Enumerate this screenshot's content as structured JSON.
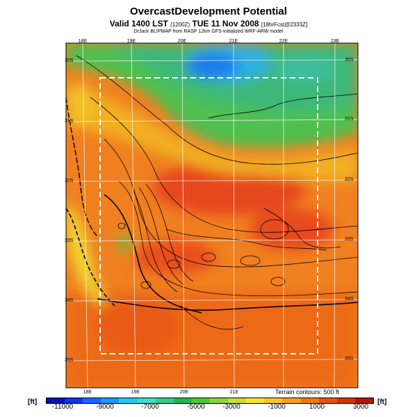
{
  "header": {
    "title": "OvercastDevelopment Potential",
    "valid_main": "Valid 1400 LST",
    "valid_utc": "(1200Z)",
    "valid_date": "TUE 11 Nov 2008",
    "forecast_tag": "[18hrFcst@2333Z]",
    "credit": "DrJack BLIPMAP from RASP 12km GFS-initialized WRF-ARW model"
  },
  "map": {
    "lon_labels_top": [
      "18E",
      "19E",
      "20E",
      "21E",
      "22E",
      "23E"
    ],
    "lon_labels_bottom": [
      "18E",
      "19E",
      "20E",
      "21E"
    ],
    "lat_labels_left": [
      "30S",
      "31S",
      "32S",
      "33S",
      "34S",
      "35S"
    ],
    "lat_labels_right": [
      "30S",
      "31S",
      "32S",
      "33S",
      "34S",
      "35S"
    ],
    "terrain_note": "Terrain contours: 500 ft"
  },
  "colorbar": {
    "unit_left": "[ft]",
    "unit_right": "[ft]",
    "ticks": [
      "-11000",
      "-9000",
      "-7000",
      "-5000",
      "-3000",
      "-1000",
      "1000",
      "3000"
    ],
    "colors": [
      "#0a0fb4",
      "#1432e6",
      "#1e64fa",
      "#1e96fa",
      "#28c8f0",
      "#3cdcc8",
      "#3cc88c",
      "#28b450",
      "#50c83c",
      "#8cd23c",
      "#c8dc3c",
      "#f0e632",
      "#f5c828",
      "#f5a01e",
      "#f07814",
      "#e65014",
      "#d2320f",
      "#b4140a"
    ]
  }
}
